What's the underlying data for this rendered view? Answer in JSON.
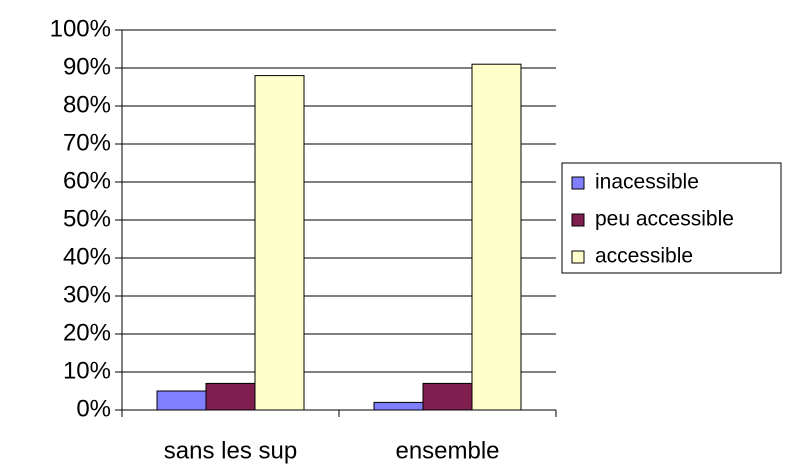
{
  "chart_data": {
    "type": "bar",
    "categories": [
      "sans les sup",
      "ensemble"
    ],
    "series": [
      {
        "name": "inacessible",
        "color": "#8080ff",
        "values": [
          5,
          2
        ]
      },
      {
        "name": "peu accessible",
        "color": "#7f1f4f",
        "values": [
          7,
          7
        ]
      },
      {
        "name": "accessible",
        "color": "#ffffcc",
        "values": [
          88,
          91
        ]
      }
    ],
    "ylim": [
      0,
      100
    ],
    "yticks": [
      {
        "value": 0,
        "label": "0%"
      },
      {
        "value": 10,
        "label": "10%"
      },
      {
        "value": 20,
        "label": "20%"
      },
      {
        "value": 30,
        "label": "30%"
      },
      {
        "value": 40,
        "label": "40%"
      },
      {
        "value": 50,
        "label": "50%"
      },
      {
        "value": 60,
        "label": "60%"
      },
      {
        "value": 70,
        "label": "70%"
      },
      {
        "value": 80,
        "label": "80%"
      },
      {
        "value": 90,
        "label": "90%"
      },
      {
        "value": 100,
        "label": "100%"
      }
    ],
    "grid": true,
    "legend": "right"
  }
}
